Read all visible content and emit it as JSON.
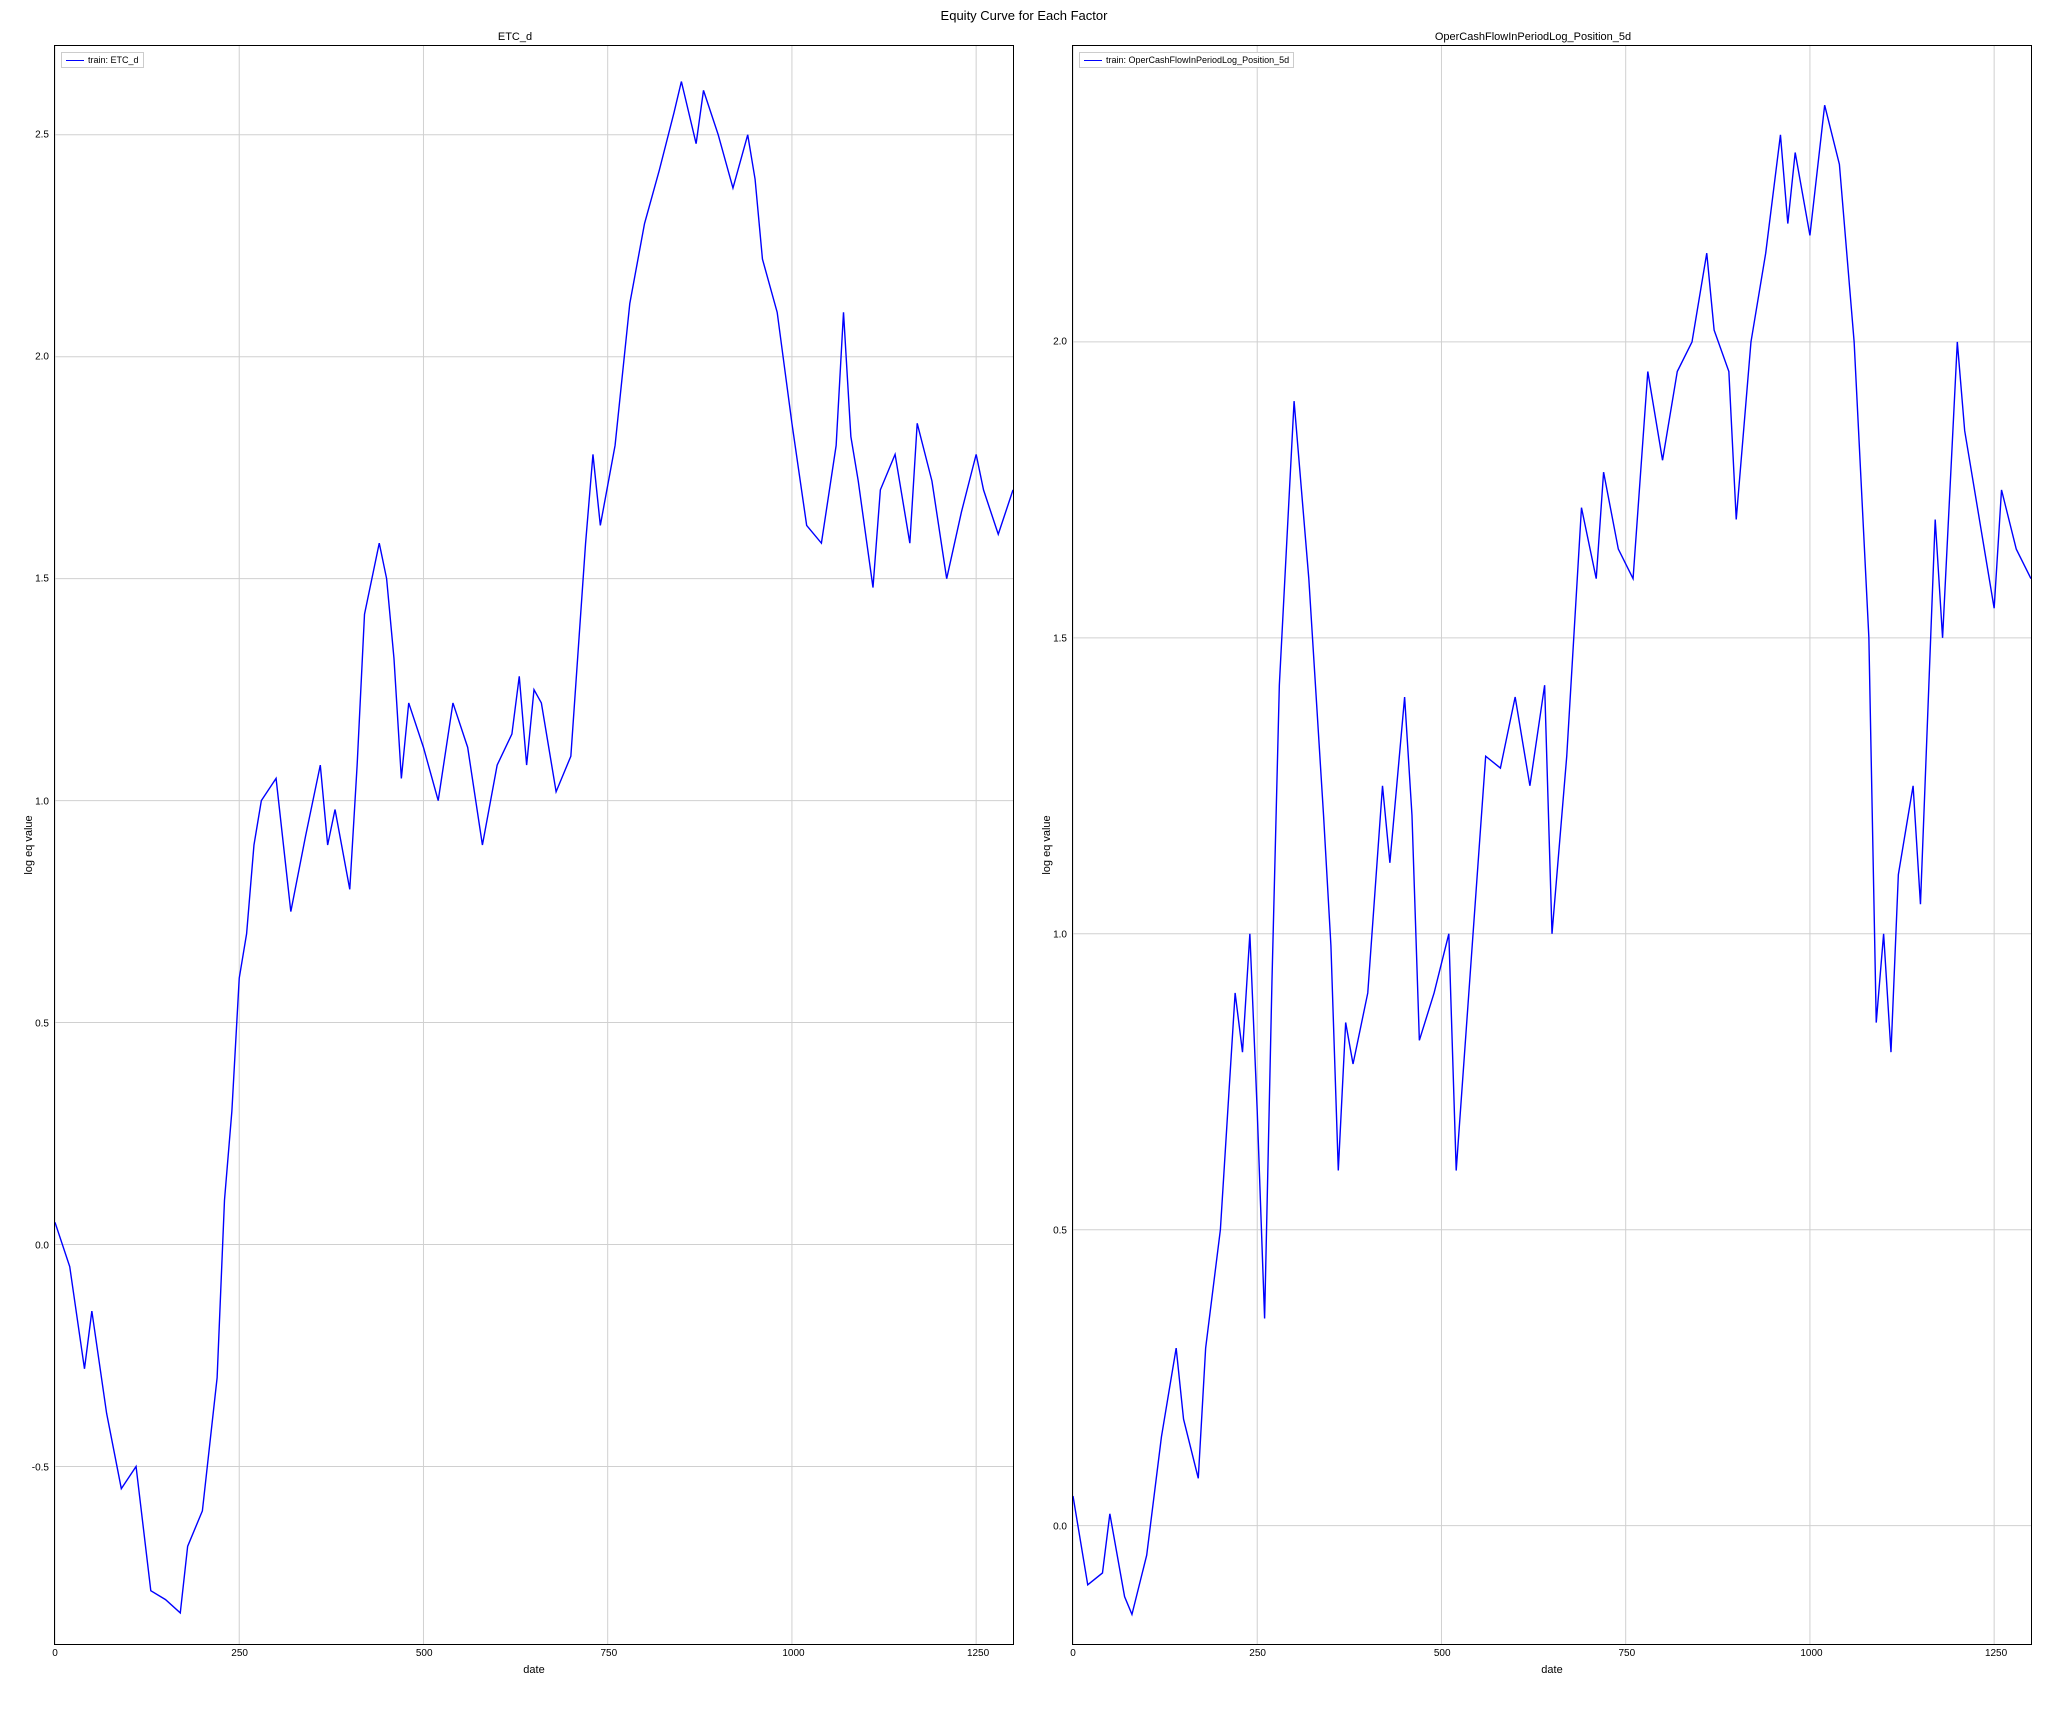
{
  "overall_title": "Equity Curve for Each Factor",
  "background_color": "#ffffff",
  "charts": [
    {
      "title": "ETC_d",
      "legend_label": "train: ETC_d",
      "y_axis_label": "log eq value",
      "x_axis_label": "date",
      "line_color": "#0000ff",
      "grid_color": "#d0d0d0",
      "border_color": "#000000",
      "line_width": 1.4,
      "xlim": [
        0,
        1300
      ],
      "ylim": [
        -0.9,
        2.7
      ],
      "x_ticks": [
        0,
        250,
        500,
        750,
        1000,
        1250
      ],
      "y_ticks": [
        -0.5,
        0.0,
        0.5,
        1.0,
        1.5,
        2.0,
        2.5
      ],
      "x_tick_labels": [
        "0",
        "250",
        "500",
        "750",
        "1000",
        "1250"
      ],
      "y_tick_labels": [
        "-0.5",
        "0.0",
        "0.5",
        "1.0",
        "1.5",
        "2.0",
        "2.5"
      ],
      "series": {
        "x": [
          0,
          20,
          40,
          50,
          70,
          90,
          110,
          130,
          150,
          170,
          180,
          200,
          220,
          230,
          240,
          250,
          260,
          270,
          280,
          300,
          320,
          340,
          360,
          370,
          380,
          400,
          410,
          420,
          440,
          450,
          460,
          470,
          480,
          500,
          520,
          540,
          560,
          580,
          600,
          620,
          630,
          640,
          650,
          660,
          680,
          700,
          720,
          730,
          740,
          760,
          780,
          800,
          820,
          840,
          850,
          870,
          880,
          900,
          920,
          940,
          950,
          960,
          980,
          1000,
          1020,
          1040,
          1060,
          1070,
          1080,
          1090,
          1110,
          1120,
          1140,
          1160,
          1170,
          1190,
          1210,
          1230,
          1250,
          1260,
          1280,
          1300
        ],
        "y": [
          0.05,
          -0.05,
          -0.28,
          -0.15,
          -0.38,
          -0.55,
          -0.5,
          -0.78,
          -0.8,
          -0.83,
          -0.68,
          -0.6,
          -0.3,
          0.1,
          0.3,
          0.6,
          0.7,
          0.9,
          1.0,
          1.05,
          0.75,
          0.92,
          1.08,
          0.9,
          0.98,
          0.8,
          1.08,
          1.42,
          1.58,
          1.5,
          1.32,
          1.05,
          1.22,
          1.12,
          1.0,
          1.22,
          1.12,
          0.9,
          1.08,
          1.15,
          1.28,
          1.08,
          1.25,
          1.22,
          1.02,
          1.1,
          1.58,
          1.78,
          1.62,
          1.8,
          2.12,
          2.3,
          2.42,
          2.55,
          2.62,
          2.48,
          2.6,
          2.5,
          2.38,
          2.5,
          2.4,
          2.22,
          2.1,
          1.85,
          1.62,
          1.58,
          1.8,
          2.1,
          1.82,
          1.72,
          1.48,
          1.7,
          1.78,
          1.58,
          1.85,
          1.72,
          1.5,
          1.65,
          1.78,
          1.7,
          1.6,
          1.7
        ]
      }
    },
    {
      "title": "OperCashFlowInPeriodLog_Position_5d",
      "legend_label": "train: OperCashFlowInPeriodLog_Position_5d",
      "y_axis_label": "log eq value",
      "x_axis_label": "date",
      "line_color": "#0000ff",
      "grid_color": "#d0d0d0",
      "border_color": "#000000",
      "line_width": 1.4,
      "xlim": [
        0,
        1300
      ],
      "ylim": [
        -0.2,
        2.5
      ],
      "x_ticks": [
        0,
        250,
        500,
        750,
        1000,
        1250
      ],
      "y_ticks": [
        0.0,
        0.5,
        1.0,
        1.5,
        2.0
      ],
      "x_tick_labels": [
        "0",
        "250",
        "500",
        "750",
        "1000",
        "1250"
      ],
      "y_tick_labels": [
        "0.0",
        "0.5",
        "1.0",
        "1.5",
        "2.0"
      ],
      "series": {
        "x": [
          0,
          20,
          40,
          50,
          70,
          80,
          100,
          120,
          140,
          150,
          170,
          180,
          200,
          220,
          230,
          240,
          250,
          260,
          270,
          280,
          300,
          320,
          340,
          350,
          360,
          370,
          380,
          400,
          420,
          430,
          450,
          460,
          470,
          490,
          510,
          520,
          540,
          560,
          580,
          600,
          620,
          640,
          650,
          670,
          690,
          710,
          720,
          740,
          760,
          780,
          800,
          820,
          840,
          860,
          870,
          890,
          900,
          920,
          940,
          960,
          970,
          980,
          1000,
          1020,
          1040,
          1060,
          1080,
          1090,
          1100,
          1110,
          1120,
          1140,
          1150,
          1170,
          1180,
          1200,
          1210,
          1230,
          1250,
          1260,
          1280,
          1300
        ],
        "y": [
          0.05,
          -0.1,
          -0.08,
          0.02,
          -0.12,
          -0.15,
          -0.05,
          0.15,
          0.3,
          0.18,
          0.08,
          0.3,
          0.5,
          0.9,
          0.8,
          1.0,
          0.7,
          0.35,
          0.92,
          1.42,
          1.9,
          1.6,
          1.2,
          0.98,
          0.6,
          0.85,
          0.78,
          0.9,
          1.25,
          1.12,
          1.4,
          1.2,
          0.82,
          0.9,
          1.0,
          0.6,
          0.95,
          1.3,
          1.28,
          1.4,
          1.25,
          1.42,
          1.0,
          1.3,
          1.72,
          1.6,
          1.78,
          1.65,
          1.6,
          1.95,
          1.8,
          1.95,
          2.0,
          2.15,
          2.02,
          1.95,
          1.7,
          2.0,
          2.15,
          2.35,
          2.2,
          2.32,
          2.18,
          2.4,
          2.3,
          2.0,
          1.5,
          0.85,
          1.0,
          0.8,
          1.1,
          1.25,
          1.05,
          1.7,
          1.5,
          2.0,
          1.85,
          1.7,
          1.55,
          1.75,
          1.65,
          1.6
        ]
      }
    }
  ]
}
